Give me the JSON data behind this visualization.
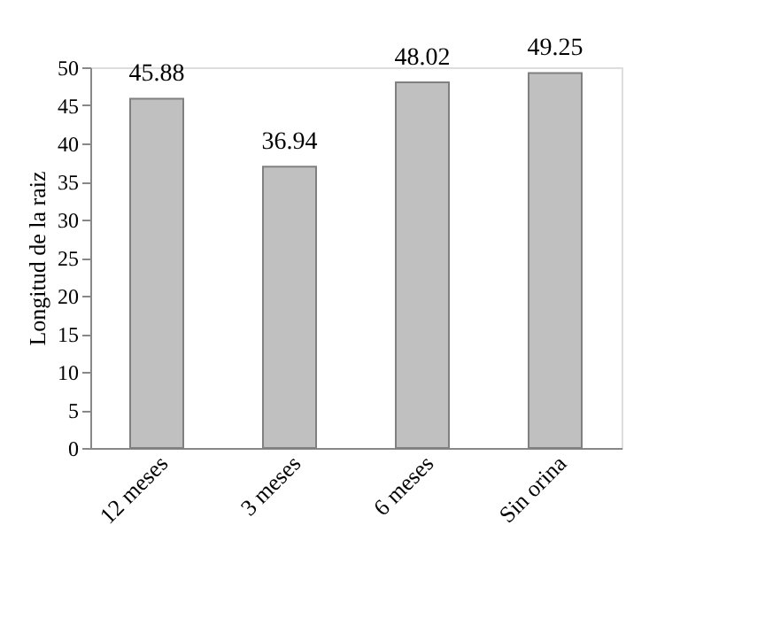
{
  "chart_data": {
    "type": "bar",
    "ylabel": "Longitud de la raiz",
    "categories": [
      "12 meses",
      "3 meses",
      "6 meses",
      "Sin orina"
    ],
    "values": [
      45.88,
      36.94,
      48.02,
      49.25
    ],
    "color": "#c0c0c0",
    "ylim": [
      0,
      50
    ],
    "yticks": [
      0,
      5,
      10,
      15,
      20,
      25,
      30,
      35,
      40,
      45,
      50
    ],
    "grid": false,
    "data_labels": true
  }
}
